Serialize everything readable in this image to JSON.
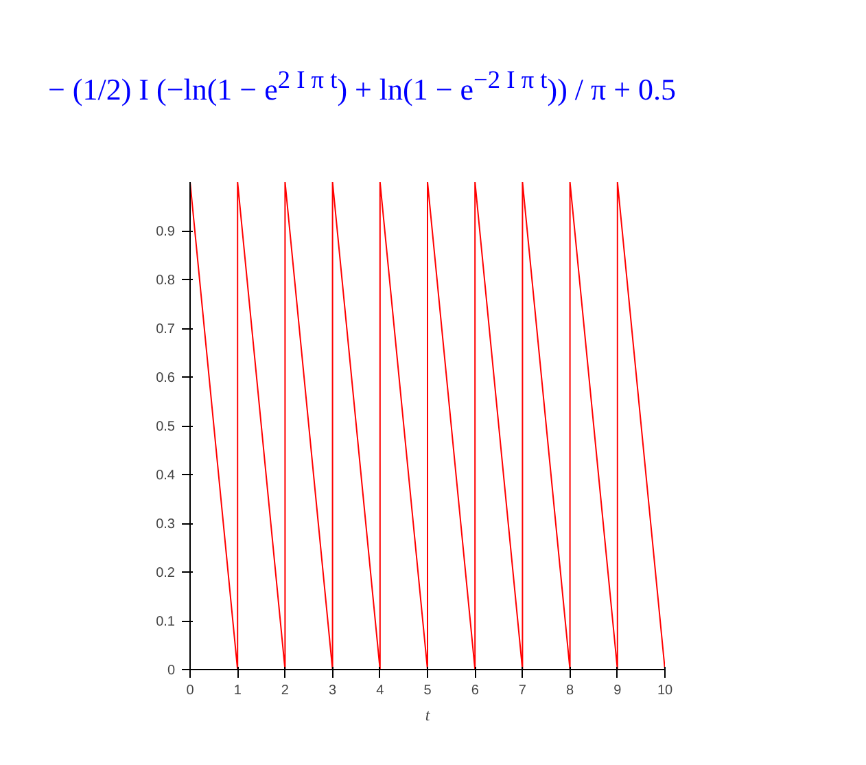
{
  "chart_data": {
    "type": "line",
    "title": "− (1/2) I (−ln(1 − e$^{2 I π t}$) + ln(1 − e$^{−2 I π t}$)) / π + 0.5",
    "xlabel": "t",
    "x": [
      0,
      1,
      1,
      2,
      2,
      3,
      3,
      4,
      4,
      5,
      5,
      6,
      6,
      7,
      7,
      8,
      8,
      9,
      9,
      10
    ],
    "series": [
      {
        "color": "#ff0000",
        "values": [
          1,
          0,
          1,
          0,
          1,
          0,
          1,
          0,
          1,
          0,
          1,
          0,
          1,
          0,
          1,
          0,
          1,
          0,
          1,
          0
        ]
      }
    ],
    "xlim": [
      0,
      10
    ],
    "xticks": [
      0,
      1,
      2,
      3,
      4,
      5,
      6,
      7,
      8,
      9,
      10
    ],
    "ylim": [
      0,
      1
    ],
    "yticks": [
      0,
      0.1,
      0.2,
      0.3,
      0.4,
      0.5,
      0.6,
      0.7,
      0.8,
      0.9
    ],
    "grid": false,
    "marker": "none",
    "line_style": "solid"
  }
}
